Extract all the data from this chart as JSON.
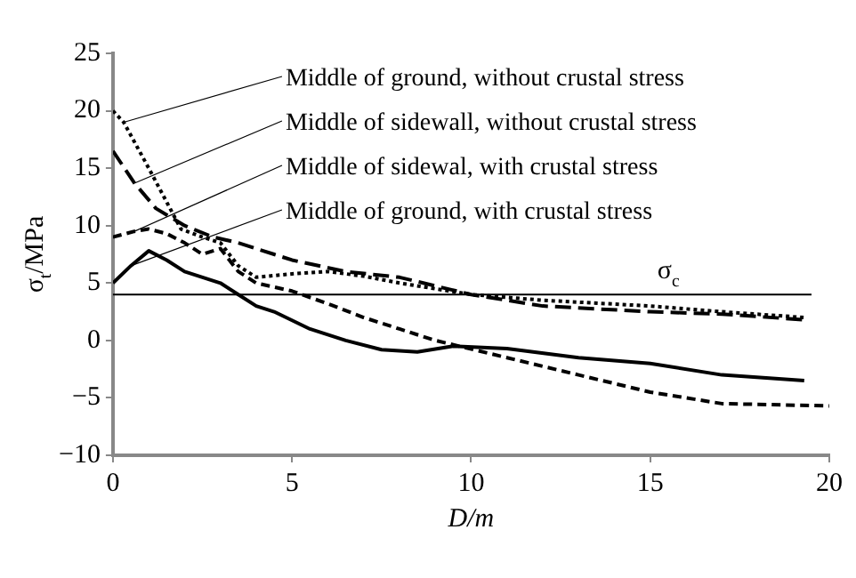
{
  "chart_data": {
    "type": "line",
    "xlabel": "D/m",
    "ylabel": "σ$_{t}$/MPa",
    "xlim": [
      0,
      20
    ],
    "xticks": [
      0,
      5,
      10,
      15,
      20
    ],
    "ylim": [
      -10,
      25
    ],
    "yticks": [
      -10,
      -5,
      0,
      5,
      10,
      15,
      20,
      25
    ],
    "grid": false,
    "legend": false,
    "marker": "none",
    "ref_lines": [
      {
        "axis": "y",
        "value": 4,
        "label": "σ$_{c}$",
        "color": "#000000"
      }
    ],
    "series": [
      {
        "name": "Middle of ground, without crustal stress",
        "color": "#000000",
        "line_style": "dotted",
        "x": [
          0,
          0.3,
          1,
          1.9,
          2.5,
          3,
          3.5,
          4,
          5,
          6,
          7,
          8,
          10,
          12,
          15,
          17,
          19.3
        ],
        "values": [
          20,
          19,
          15,
          9.7,
          9,
          8.5,
          6.5,
          5.5,
          5.8,
          6,
          5.6,
          5,
          4,
          3.5,
          3,
          2.5,
          2
        ]
      },
      {
        "name": "Middle of sidewall, without crustal stress",
        "color": "#000000",
        "line_style": "dashed",
        "x": [
          0,
          0.6,
          1.2,
          2,
          2.8,
          3.5,
          4.5,
          5,
          6.5,
          8,
          10,
          12,
          15,
          17,
          19.3
        ],
        "values": [
          16.5,
          13.7,
          11.5,
          10,
          9,
          8.5,
          7.5,
          7,
          6,
          5.5,
          4,
          3,
          2.5,
          2.3,
          1.8
        ]
      },
      {
        "name": "Middle of sidewal, with crustal stress",
        "color": "#000000",
        "line_style": "dashed",
        "x": [
          0,
          0.6,
          1,
          1.5,
          2,
          2.5,
          3,
          3.5,
          4,
          5,
          6,
          7,
          8,
          9,
          11,
          13,
          15,
          17,
          20
        ],
        "values": [
          9,
          9.5,
          9.7,
          9.3,
          8.5,
          7.5,
          8,
          6,
          5,
          4.3,
          3.2,
          2,
          1,
          0,
          -1.5,
          -3,
          -4.5,
          -5.5,
          -5.7
        ]
      },
      {
        "name": "Middle of ground, with crustal stress",
        "color": "#000000",
        "line_style": "solid",
        "x": [
          0,
          0.5,
          1,
          1.5,
          2,
          3,
          3.5,
          4,
          4.5,
          5.5,
          6.5,
          7.5,
          8.5,
          9.5,
          11,
          13,
          15,
          17,
          19.3
        ],
        "values": [
          5,
          6.5,
          7.8,
          7,
          6,
          5,
          4,
          3,
          2.5,
          1,
          0,
          -0.8,
          -1,
          -0.5,
          -0.7,
          -1.5,
          -2,
          -3,
          -3.5
        ]
      }
    ]
  }
}
